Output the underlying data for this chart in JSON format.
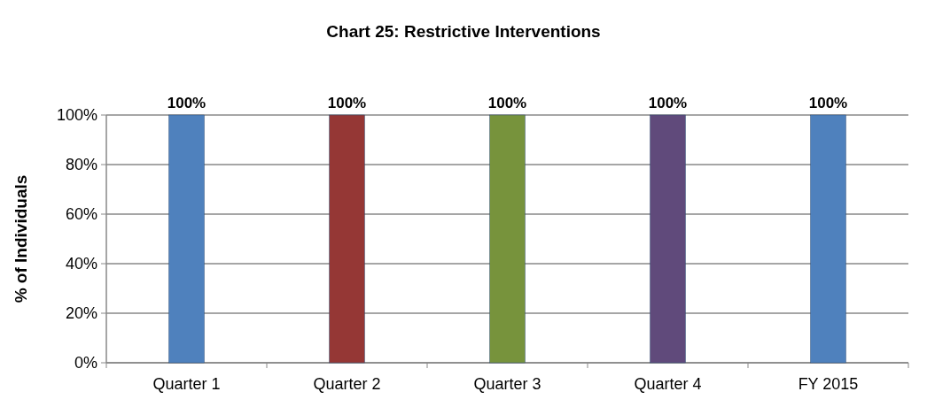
{
  "chart_data": {
    "type": "bar",
    "title": "Chart 25: Restrictive Interventions",
    "ylabel": "% of Individuals",
    "categories": [
      "Quarter 1",
      "Quarter 2",
      "Quarter 3",
      "Quarter 4",
      "FY 2015"
    ],
    "values": [
      100,
      100,
      100,
      100,
      100
    ],
    "colors": [
      "#4f81bd",
      "#953735",
      "#77933c",
      "#604a7b",
      "#4f81bd"
    ],
    "value_labels": [
      "100%",
      "100%",
      "100%",
      "100%",
      "100%"
    ],
    "ylim": [
      0,
      100
    ],
    "yticks": [
      {
        "value": 0,
        "label": "0%"
      },
      {
        "value": 20,
        "label": "20%"
      },
      {
        "value": 40,
        "label": "40%"
      },
      {
        "value": 60,
        "label": "60%"
      },
      {
        "value": 80,
        "label": "80%"
      },
      {
        "value": 100,
        "label": "100%"
      }
    ],
    "grid": true
  }
}
